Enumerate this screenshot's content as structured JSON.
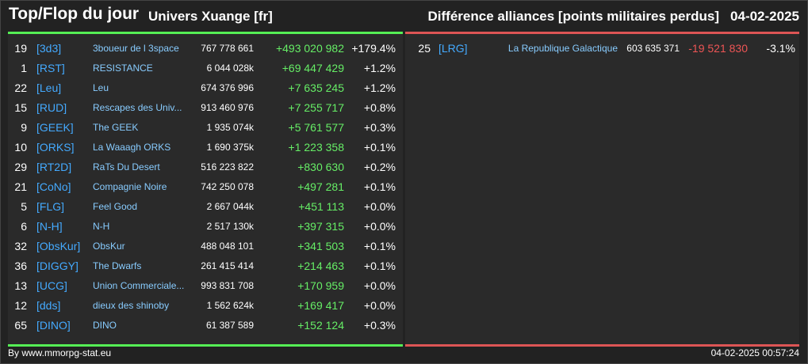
{
  "header": {
    "title": "Top/Flop du jour",
    "subtitle": "Univers Xuange [fr]",
    "right_title": "Différence alliances [points militaires perdus]",
    "date": "04-02-2025"
  },
  "top": [
    {
      "rank": "19",
      "tag": "[3d3]",
      "name": "3boueur de l 3space",
      "total": "767 778 661",
      "diff": "+493 020 982",
      "pct": "+179.4%"
    },
    {
      "rank": "1",
      "tag": "[RST]",
      "name": "RESISTANCE",
      "total": "6 044 028k",
      "diff": "+69 447 429",
      "pct": "+1.2%"
    },
    {
      "rank": "22",
      "tag": "[Leu]",
      "name": "Leu",
      "total": "674 376 996",
      "diff": "+7 635 245",
      "pct": "+1.2%"
    },
    {
      "rank": "15",
      "tag": "[RUD]",
      "name": "Rescapes des Univ...",
      "total": "913 460 976",
      "diff": "+7 255 717",
      "pct": "+0.8%"
    },
    {
      "rank": "9",
      "tag": "[GEEK]",
      "name": "The GEEK",
      "total": "1 935 074k",
      "diff": "+5 761 577",
      "pct": "+0.3%"
    },
    {
      "rank": "10",
      "tag": "[ORKS]",
      "name": "La Waaagh ORKS",
      "total": "1 690 375k",
      "diff": "+1 223 358",
      "pct": "+0.1%"
    },
    {
      "rank": "29",
      "tag": "[RT2D]",
      "name": "RaTs Du Desert",
      "total": "516 223 822",
      "diff": "+830 630",
      "pct": "+0.2%"
    },
    {
      "rank": "21",
      "tag": "[CoNo]",
      "name": "Compagnie Noire",
      "total": "742 250 078",
      "diff": "+497 281",
      "pct": "+0.1%"
    },
    {
      "rank": "5",
      "tag": "[FLG]",
      "name": "Feel Good",
      "total": "2 667 044k",
      "diff": "+451 113",
      "pct": "+0.0%"
    },
    {
      "rank": "6",
      "tag": "[N-H]",
      "name": "N-H",
      "total": "2 517 130k",
      "diff": "+397 315",
      "pct": "+0.0%"
    },
    {
      "rank": "32",
      "tag": "[ObsKur]",
      "name": "ObsKur",
      "total": "488 048 101",
      "diff": "+341 503",
      "pct": "+0.1%"
    },
    {
      "rank": "36",
      "tag": "[DIGGY]",
      "name": "The Dwarfs",
      "total": "261 415 414",
      "diff": "+214 463",
      "pct": "+0.1%"
    },
    {
      "rank": "13",
      "tag": "[UCG]",
      "name": "Union Commerciale...",
      "total": "993 831 708",
      "diff": "+170 959",
      "pct": "+0.0%"
    },
    {
      "rank": "12",
      "tag": "[dds]",
      "name": "dieux des shinoby",
      "total": "1 562 624k",
      "diff": "+169 417",
      "pct": "+0.0%"
    },
    {
      "rank": "65",
      "tag": "[DINO]",
      "name": "DINO",
      "total": "61 387 589",
      "diff": "+152 124",
      "pct": "+0.3%"
    }
  ],
  "flop": [
    {
      "rank": "25",
      "tag": "[LRG]",
      "name": "La Republique Galactique",
      "total": "603 635 371",
      "diff": "-19 521 830",
      "pct": "-3.1%"
    }
  ],
  "footer": {
    "source": "By www.mmorpg-stat.eu",
    "timestamp": "04-02-2025 00:57:24"
  },
  "colors": {
    "positive": "#66ee66",
    "negative": "#ee5555",
    "tag": "#44aaff",
    "name": "#88ccff"
  }
}
